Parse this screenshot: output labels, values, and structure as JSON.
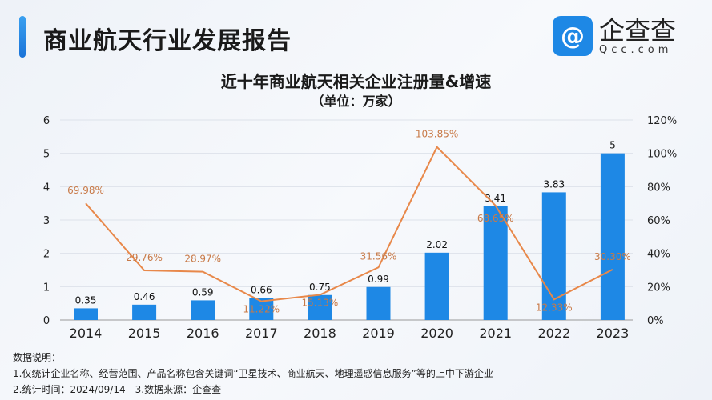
{
  "header": {
    "title": "商业航天行业发展报告",
    "logo_icon": "qcc-logo-icon",
    "logo_name": "企查查",
    "logo_domain": "Qcc.com"
  },
  "chart_data": {
    "type": "bar+line",
    "title": "近十年商业航天相关企业注册量&增速",
    "subtitle": "（单位：万家）",
    "categories": [
      "2014",
      "2015",
      "2016",
      "2017",
      "2018",
      "2019",
      "2020",
      "2021",
      "2022",
      "2023"
    ],
    "series": [
      {
        "type": "bar",
        "axis": "left",
        "values": [
          0.35,
          0.46,
          0.59,
          0.66,
          0.75,
          0.99,
          2.02,
          3.41,
          3.83,
          5
        ],
        "labels": [
          "0.35",
          "0.46",
          "0.59",
          "0.66",
          "0.75",
          "0.99",
          "2.02",
          "3.41",
          "3.83",
          "5"
        ],
        "color": "#1e88e5"
      },
      {
        "type": "line",
        "axis": "right",
        "values": [
          69.98,
          29.76,
          28.97,
          11.22,
          15.13,
          31.56,
          103.85,
          68.65,
          12.33,
          30.3
        ],
        "labels": [
          "69.98%",
          "29.76%",
          "28.97%",
          "11.22%",
          "15.13%",
          "31.56%",
          "103.85%",
          "68.65%",
          "12.33%",
          "30.30%"
        ],
        "color": "#e8884a"
      }
    ],
    "left_axis": {
      "range": [
        0,
        6
      ],
      "ticks": [
        "0",
        "1",
        "2",
        "3",
        "4",
        "5",
        "6"
      ]
    },
    "right_axis": {
      "range": [
        0,
        120
      ],
      "ticks": [
        "0%",
        "20%",
        "40%",
        "60%",
        "80%",
        "100%",
        "120%"
      ]
    },
    "grid": true
  },
  "notes": {
    "heading": "数据说明：",
    "line1": "1.仅统计企业名称、经营范围、产品名称包含关键词“卫星技术、商业航天、地理遥感信息服务”等的上中下游企业",
    "line2": "2.统计时间：2024/09/14　3.数据来源：企查查"
  }
}
